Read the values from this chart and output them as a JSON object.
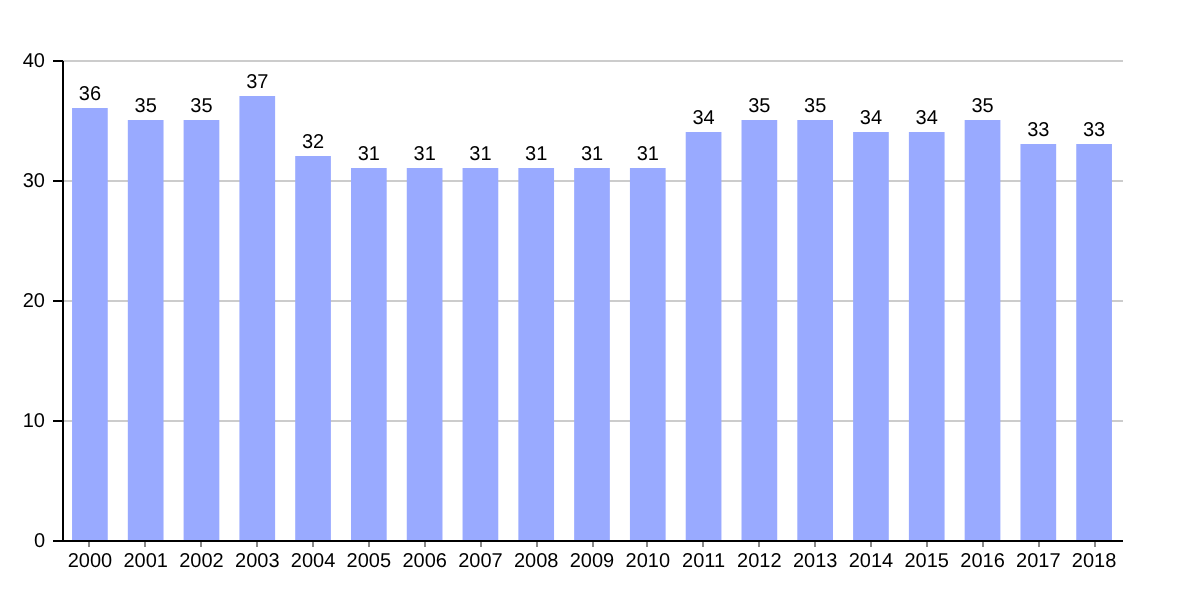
{
  "chart_data": {
    "type": "bar",
    "categories": [
      "2000",
      "2001",
      "2002",
      "2003",
      "2004",
      "2005",
      "2006",
      "2007",
      "2008",
      "2009",
      "2010",
      "2011",
      "2012",
      "2013",
      "2014",
      "2015",
      "2016",
      "2017",
      "2018"
    ],
    "values": [
      36,
      35,
      35,
      37,
      32,
      31,
      31,
      31,
      31,
      31,
      31,
      34,
      35,
      35,
      34,
      34,
      35,
      33,
      33
    ],
    "color": "#99aaff",
    "ylim": [
      0,
      40
    ],
    "yticks": [
      0,
      10,
      20,
      30,
      40
    ],
    "grid": "y",
    "data_labels": true
  }
}
